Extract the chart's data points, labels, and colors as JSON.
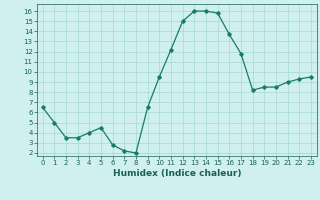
{
  "x": [
    0,
    1,
    2,
    3,
    4,
    5,
    6,
    7,
    8,
    9,
    10,
    11,
    12,
    13,
    14,
    15,
    16,
    17,
    18,
    19,
    20,
    21,
    22,
    23
  ],
  "y": [
    6.5,
    5.0,
    3.5,
    3.5,
    4.0,
    4.5,
    2.8,
    2.2,
    2.0,
    6.5,
    9.5,
    12.2,
    15.0,
    16.0,
    16.0,
    15.8,
    13.7,
    11.8,
    8.2,
    8.5,
    8.5,
    9.0,
    9.3,
    9.5
  ],
  "xlabel": "Humidex (Indice chaleur)",
  "xlim": [
    -0.5,
    23.5
  ],
  "ylim": [
    1.7,
    16.7
  ],
  "yticks": [
    2,
    3,
    4,
    5,
    6,
    7,
    8,
    9,
    10,
    11,
    12,
    13,
    14,
    15,
    16
  ],
  "xticks": [
    0,
    1,
    2,
    3,
    4,
    5,
    6,
    7,
    8,
    9,
    10,
    11,
    12,
    13,
    14,
    15,
    16,
    17,
    18,
    19,
    20,
    21,
    22,
    23
  ],
  "line_color": "#1a7a6e",
  "marker": "D",
  "marker_size": 1.8,
  "bg_color": "#cff0ee",
  "grid_color": "#a8d8d4",
  "font_color": "#1a5f5a",
  "tick_fontsize": 5.0,
  "xlabel_fontsize": 6.5
}
